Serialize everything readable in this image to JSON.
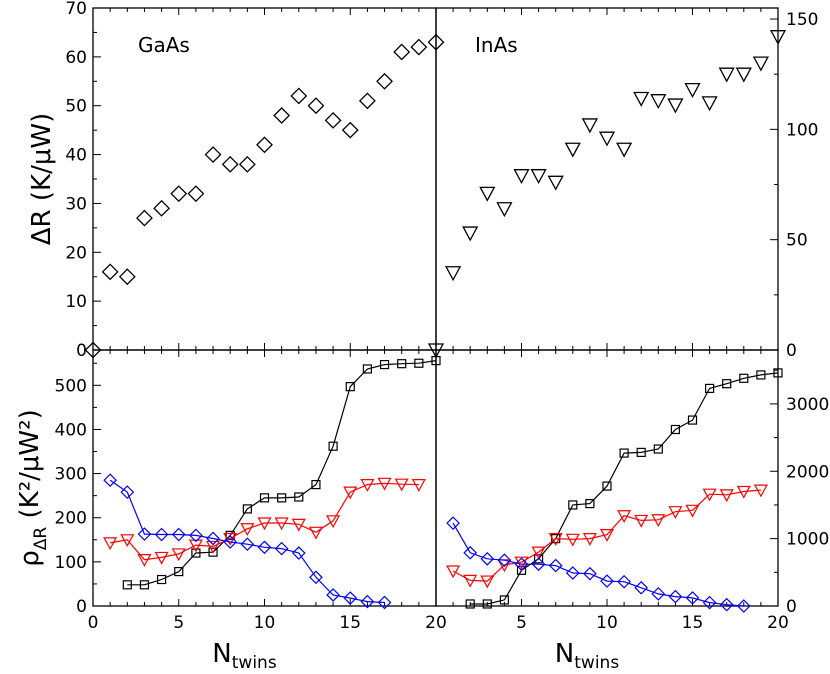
{
  "chart_data": [
    {
      "type": "scatter",
      "panel": "top-left",
      "label": "GaAs",
      "ylabel": "ΔR (K/μW)",
      "xlim": [
        0,
        20
      ],
      "ylim": [
        0,
        70
      ],
      "yticks": [
        0,
        10,
        20,
        30,
        40,
        50,
        60,
        70
      ],
      "marker": "diamond",
      "color": "#000000",
      "x": [
        0,
        1,
        2,
        3,
        4,
        5,
        6,
        7,
        8,
        9,
        10,
        11,
        12,
        13,
        14,
        15,
        16,
        17,
        18,
        19,
        20
      ],
      "y": [
        0,
        16,
        15,
        27,
        29,
        32,
        32,
        40,
        38,
        38,
        42,
        48,
        52,
        50,
        47,
        45,
        51,
        55,
        61,
        62,
        63
      ]
    },
    {
      "type": "scatter",
      "panel": "top-right",
      "label": "InAs",
      "ylim": [
        0,
        155
      ],
      "yticks": [
        0,
        50,
        100,
        150
      ],
      "y_axis_side": "right",
      "marker": "triangle-down",
      "color": "#000000",
      "x": [
        0,
        1,
        2,
        3,
        4,
        5,
        6,
        7,
        8,
        9,
        10,
        11,
        12,
        13,
        14,
        15,
        16,
        17,
        18,
        19,
        20
      ],
      "y": [
        0,
        35,
        53,
        71,
        64,
        79,
        79,
        76,
        91,
        102,
        96,
        91,
        114,
        113,
        111,
        118,
        112,
        125,
        125,
        130,
        142
      ]
    },
    {
      "type": "line",
      "panel": "bottom-left",
      "ylabel_main": "ρ",
      "ylabel_sub": "ΔR",
      "ylabel_units": "(K²/μW²)",
      "xlabel_main": "N",
      "xlabel_sub": "twins",
      "xlim": [
        0,
        20
      ],
      "ylim": [
        0,
        580
      ],
      "yticks": [
        0,
        100,
        200,
        300,
        400,
        500
      ],
      "xticks": [
        0,
        5,
        10,
        15,
        20
      ],
      "series": [
        {
          "name": "black-squares",
          "marker": "square",
          "color": "#000000",
          "x": [
            2,
            3,
            4,
            5,
            6,
            7,
            8,
            9,
            10,
            11,
            12,
            13,
            14,
            15,
            16,
            17,
            18,
            19,
            20
          ],
          "y": [
            48,
            48,
            60,
            78,
            120,
            122,
            160,
            220,
            245,
            245,
            247,
            275,
            362,
            497,
            537,
            547,
            549,
            550,
            556
          ]
        },
        {
          "name": "red-triangles",
          "marker": "triangle-down",
          "color": "#ff0000",
          "x": [
            1,
            2,
            3,
            4,
            5,
            6,
            7,
            8,
            9,
            10,
            11,
            12,
            13,
            14,
            15,
            16,
            17,
            18,
            19
          ],
          "y": [
            143,
            150,
            105,
            110,
            118,
            138,
            135,
            153,
            175,
            188,
            188,
            185,
            167,
            193,
            258,
            275,
            278,
            276,
            275
          ]
        },
        {
          "name": "blue-diamonds",
          "marker": "diamond",
          "color": "#0000ff",
          "x": [
            1,
            2,
            3,
            4,
            5,
            6,
            7,
            8,
            9,
            10,
            11,
            12,
            13,
            14,
            15,
            16,
            17
          ],
          "y": [
            285,
            258,
            163,
            162,
            162,
            160,
            153,
            145,
            140,
            133,
            130,
            120,
            65,
            25,
            18,
            10,
            8
          ]
        }
      ]
    },
    {
      "type": "line",
      "panel": "bottom-right",
      "xlabel_main": "N",
      "xlabel_sub": "twins",
      "xlim": [
        0,
        20
      ],
      "ylim": [
        0,
        3800
      ],
      "yticks": [
        0,
        1000,
        2000,
        3000
      ],
      "xticks": [
        5,
        10,
        15,
        20
      ],
      "y_axis_side": "right",
      "series": [
        {
          "name": "black-squares",
          "marker": "square",
          "color": "#000000",
          "x": [
            2,
            3,
            4,
            5,
            6,
            7,
            8,
            9,
            10,
            11,
            12,
            13,
            14,
            15,
            16,
            17,
            18,
            19,
            20
          ],
          "y": [
            30,
            30,
            90,
            530,
            700,
            1000,
            1500,
            1520,
            1780,
            2270,
            2280,
            2330,
            2620,
            2760,
            3230,
            3300,
            3380,
            3430,
            3460
          ]
        },
        {
          "name": "red-triangles",
          "marker": "triangle-down",
          "color": "#ff0000",
          "x": [
            1,
            2,
            3,
            4,
            5,
            6,
            7,
            8,
            9,
            10,
            11,
            12,
            13,
            14,
            15,
            16,
            17,
            18,
            19
          ],
          "y": [
            520,
            380,
            370,
            610,
            650,
            800,
            1000,
            990,
            1000,
            1060,
            1340,
            1270,
            1280,
            1400,
            1420,
            1660,
            1650,
            1700,
            1720
          ]
        },
        {
          "name": "blue-diamonds",
          "marker": "diamond",
          "color": "#0000ff",
          "x": [
            1,
            2,
            3,
            4,
            5,
            6,
            7,
            8,
            9,
            10,
            11,
            12,
            13,
            14,
            15,
            16,
            17,
            18
          ],
          "y": [
            1230,
            790,
            700,
            680,
            620,
            620,
            600,
            490,
            480,
            370,
            360,
            270,
            180,
            140,
            120,
            50,
            20,
            0
          ]
        }
      ]
    }
  ]
}
